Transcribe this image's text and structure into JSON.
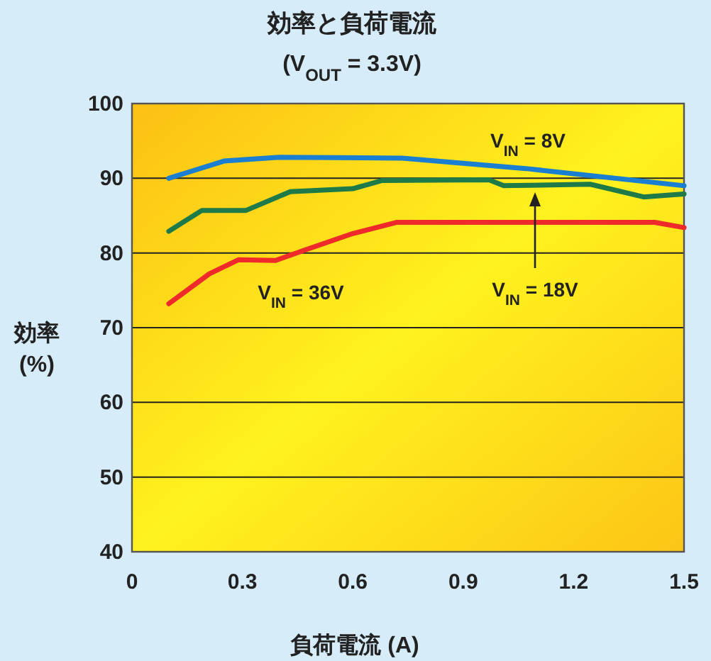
{
  "chart_data": {
    "type": "line",
    "title": "効率と負荷電流",
    "subtitle": "(V$_{OUT}$ = 3.3V)",
    "xlabel": "負荷電流 (A)",
    "ylabel": "効率 (%)",
    "xlim": [
      0,
      1.5
    ],
    "xticks": [
      0,
      0.3,
      0.6,
      0.9,
      1.2,
      1.5
    ],
    "ylim": [
      40,
      100
    ],
    "yticks": [
      40,
      50,
      60,
      70,
      80,
      90,
      100
    ],
    "grid": "y",
    "series": [
      {
        "name": "V$_{IN}$ = 8V",
        "color": "#1a7fd0",
        "x": [
          0.1,
          0.25,
          0.4,
          0.735,
          1.07,
          1.5
        ],
        "values": [
          90,
          92.3,
          92.8,
          92.7,
          91.3,
          89.0
        ]
      },
      {
        "name": "V$_{IN}$ = 18V",
        "color": "#1e7a48",
        "x": [
          0.1,
          0.19,
          0.31,
          0.43,
          0.6,
          0.68,
          0.97,
          1.01,
          1.245,
          1.39,
          1.5
        ],
        "values": [
          82.9,
          85.7,
          85.7,
          88.2,
          88.6,
          89.7,
          89.8,
          89.0,
          89.2,
          87.5,
          87.9
        ]
      },
      {
        "name": "V$_{IN}$ = 36V",
        "color": "#ee2a2a",
        "x": [
          0.1,
          0.21,
          0.29,
          0.39,
          0.47,
          0.6,
          0.72,
          1.42,
          1.5
        ],
        "values": [
          73.2,
          77.2,
          79.1,
          79.0,
          80.4,
          82.6,
          84.1,
          84.1,
          83.4
        ]
      }
    ]
  }
}
